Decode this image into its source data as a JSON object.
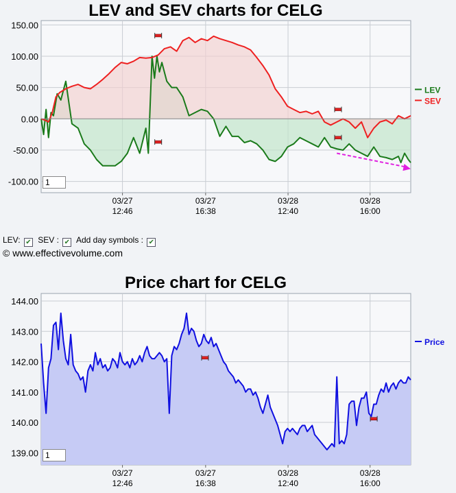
{
  "chart_data": [
    {
      "type": "line",
      "title": "LEV and SEV charts for CELG",
      "x_ticks": [
        "03/27 12:46",
        "03/27 16:38",
        "03/28 12:40",
        "03/28 16:00"
      ],
      "y_ticks": [
        "150.00",
        "100.00",
        "50.00",
        "0.00",
        "-50.00",
        "-100.00"
      ],
      "ylim": [
        -118,
        157
      ],
      "grid": true,
      "legend_position": "right",
      "series": [
        {
          "name": "LEV",
          "color": "#1a7a1a",
          "fill": "#bfe3c8",
          "x": [
            0,
            2,
            4,
            6,
            8,
            10,
            13,
            16,
            20,
            25,
            30,
            35,
            40,
            45,
            50,
            55,
            60,
            65,
            70,
            75,
            80,
            85,
            87,
            90,
            92,
            94,
            96,
            98,
            100,
            102,
            104,
            106,
            110,
            115,
            120,
            125,
            130,
            135,
            140,
            145,
            150,
            155,
            160,
            165,
            170,
            175,
            180,
            185,
            190,
            195,
            200,
            205,
            210,
            215,
            220,
            225,
            230,
            235,
            240,
            245,
            250,
            255,
            260,
            265,
            270,
            275,
            280,
            285,
            290,
            292,
            295,
            298,
            300
          ],
          "values": [
            0,
            -25,
            15,
            -30,
            10,
            5,
            40,
            30,
            60,
            -8,
            -15,
            -40,
            -50,
            -65,
            -75,
            -75,
            -75,
            -68,
            -55,
            -30,
            -55,
            -15,
            -55,
            100,
            65,
            100,
            75,
            90,
            75,
            60,
            55,
            50,
            50,
            35,
            5,
            10,
            15,
            12,
            0,
            -28,
            -12,
            -28,
            -28,
            -38,
            -35,
            -40,
            -50,
            -65,
            -68,
            -60,
            -45,
            -40,
            -30,
            -35,
            -40,
            -45,
            -30,
            -45,
            -48,
            -50,
            -40,
            -50,
            -55,
            -60,
            -45,
            -60,
            -62,
            -65,
            -60,
            -70,
            -55,
            -65,
            -70
          ]
        },
        {
          "name": "SEV",
          "color": "#ee2020",
          "fill": "#f3cfd0",
          "x": [
            0,
            3,
            6,
            9,
            12,
            15,
            20,
            25,
            30,
            35,
            40,
            45,
            50,
            55,
            60,
            65,
            70,
            75,
            80,
            85,
            90,
            95,
            100,
            105,
            110,
            115,
            120,
            125,
            130,
            135,
            140,
            145,
            150,
            155,
            160,
            165,
            170,
            175,
            180,
            185,
            190,
            195,
            200,
            205,
            210,
            215,
            220,
            225,
            230,
            235,
            240,
            245,
            250,
            255,
            260,
            265,
            270,
            275,
            280,
            285,
            290,
            295,
            300
          ],
          "values": [
            0,
            -2,
            -5,
            10,
            35,
            42,
            48,
            52,
            55,
            50,
            48,
            55,
            63,
            72,
            82,
            90,
            88,
            92,
            98,
            97,
            98,
            102,
            112,
            115,
            108,
            125,
            130,
            122,
            128,
            125,
            132,
            128,
            125,
            122,
            118,
            115,
            110,
            98,
            85,
            70,
            48,
            35,
            20,
            15,
            10,
            12,
            8,
            12,
            -5,
            -10,
            -5,
            0,
            -5,
            -15,
            -5,
            -30,
            -15,
            -5,
            -2,
            -8,
            5,
            0,
            5
          ]
        }
      ],
      "markers": [
        {
          "x": 95,
          "y": 133
        },
        {
          "x": 95,
          "y": -37
        },
        {
          "x": 241,
          "y": 15
        },
        {
          "x": 241,
          "y": -30
        }
      ],
      "arrow": {
        "x1": 240,
        "y1": -55,
        "x2": 300,
        "y2": -80,
        "color": "#e020e0"
      }
    },
    {
      "type": "area",
      "title": "Price chart for CELG",
      "x_ticks": [
        "03/27 12:46",
        "03/27 16:38",
        "03/28 12:40",
        "03/28 16:00"
      ],
      "y_ticks": [
        "144.00",
        "143.00",
        "142.00",
        "141.00",
        "140.00",
        "139.00"
      ],
      "ylim": [
        138.6,
        144.25
      ],
      "grid": true,
      "legend_position": "right",
      "series": [
        {
          "name": "Price",
          "color": "#1010e0",
          "fill": "#c6cbf5",
          "x": [
            0,
            2,
            4,
            6,
            8,
            10,
            12,
            14,
            16,
            18,
            20,
            22,
            24,
            26,
            28,
            30,
            32,
            34,
            36,
            38,
            40,
            42,
            44,
            46,
            48,
            50,
            52,
            54,
            56,
            58,
            60,
            62,
            64,
            66,
            68,
            70,
            72,
            74,
            76,
            78,
            80,
            82,
            84,
            86,
            88,
            90,
            92,
            94,
            96,
            98,
            100,
            102,
            104,
            106,
            108,
            110,
            112,
            114,
            116,
            118,
            120,
            122,
            124,
            126,
            128,
            130,
            132,
            134,
            136,
            138,
            140,
            142,
            144,
            146,
            148,
            150,
            152,
            154,
            156,
            158,
            160,
            162,
            164,
            166,
            168,
            170,
            172,
            174,
            176,
            178,
            180,
            182,
            184,
            186,
            188,
            190,
            192,
            194,
            196,
            198,
            200,
            202,
            204,
            206,
            208,
            210,
            212,
            214,
            216,
            218,
            220,
            222,
            224,
            226,
            228,
            230,
            232,
            234,
            236,
            238,
            240,
            242,
            244,
            246,
            248,
            250,
            252,
            254,
            256,
            258,
            260,
            262,
            264,
            266,
            268,
            270,
            272,
            274,
            276,
            278,
            280,
            282,
            284,
            286,
            288,
            290,
            292,
            294,
            296,
            298,
            300
          ],
          "values": [
            142.6,
            141.3,
            140.3,
            141.8,
            142.1,
            143.2,
            143.3,
            142.4,
            143.6,
            142.7,
            142.1,
            141.9,
            142.9,
            141.9,
            141.7,
            141.6,
            141.4,
            141.5,
            141.0,
            141.7,
            141.9,
            141.7,
            142.3,
            141.9,
            142.1,
            141.8,
            141.9,
            141.7,
            141.8,
            142.1,
            142.0,
            141.8,
            142.3,
            142.0,
            141.9,
            142.0,
            141.8,
            142.1,
            141.9,
            142.0,
            142.2,
            142.0,
            142.3,
            142.5,
            142.2,
            142.1,
            142.1,
            142.2,
            142.3,
            142.2,
            142.0,
            142.1,
            140.3,
            142.2,
            142.5,
            142.4,
            142.6,
            142.9,
            143.1,
            143.6,
            142.9,
            143.1,
            143.0,
            142.7,
            142.5,
            142.6,
            142.9,
            142.7,
            142.6,
            142.8,
            142.5,
            142.6,
            142.4,
            142.2,
            142.0,
            141.9,
            141.7,
            141.6,
            141.5,
            141.3,
            141.4,
            141.3,
            141.2,
            141.0,
            141.1,
            141.1,
            140.9,
            141.0,
            140.8,
            140.5,
            140.3,
            140.6,
            140.9,
            140.5,
            140.3,
            140.1,
            139.9,
            139.6,
            139.3,
            139.7,
            139.8,
            139.7,
            139.8,
            139.7,
            139.6,
            139.8,
            139.9,
            139.9,
            139.7,
            139.8,
            139.9,
            139.6,
            139.5,
            139.4,
            139.3,
            139.2,
            139.1,
            139.2,
            139.3,
            139.2,
            141.5,
            139.3,
            139.4,
            139.3,
            139.6,
            140.6,
            140.7,
            140.7,
            139.9,
            140.5,
            140.8,
            140.8,
            141.0,
            140.3,
            140.2,
            140.6,
            140.6,
            140.9,
            141.1,
            141.0,
            141.3,
            141.0,
            141.2,
            141.3,
            141.1,
            141.3,
            141.4,
            141.3,
            141.3,
            141.5,
            141.4
          ]
        }
      ],
      "markers": [
        {
          "x": 133,
          "y": 142.13
        },
        {
          "x": 270,
          "y": 140.12
        }
      ]
    }
  ],
  "controls": {
    "lev_label": "LEV:",
    "sev_label": "SEV :",
    "day_symbols_label": "Add day symbols :",
    "site": "© www.effectivevolume.com",
    "zoom_value": "1"
  }
}
